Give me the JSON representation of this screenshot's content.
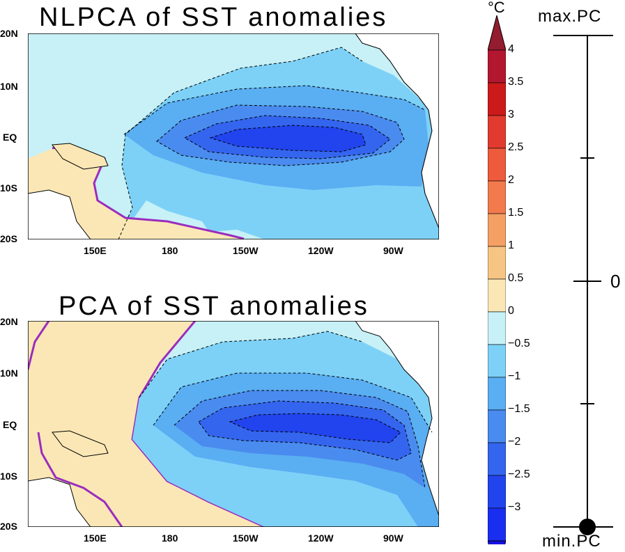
{
  "panels": [
    {
      "title": "NLPCA of SST anomalies"
    },
    {
      "title": "PCA of SST anomalies"
    }
  ],
  "lat_labels": [
    "20N",
    "10N",
    "EQ",
    "10S",
    "20S"
  ],
  "lon_labels": [
    "150E",
    "180",
    "150W",
    "120W",
    "90W"
  ],
  "colorbar": {
    "unit": "°C",
    "levels": [
      "4",
      "3.5",
      "3",
      "2.5",
      "2",
      "1.5",
      "1",
      "0.5",
      "0",
      "−0.5",
      "−1",
      "−1.5",
      "−2",
      "−2.5",
      "−3"
    ],
    "colors": [
      "#b3172f",
      "#cc1a1a",
      "#e03b2e",
      "#ee5a3c",
      "#f27a4c",
      "#f4a064",
      "#f7c583",
      "#fbe7b5",
      "#c7f1f7",
      "#7dd1f7",
      "#5aaef2",
      "#4a8bef",
      "#3465ef",
      "#2144ee",
      "#1a2ef0",
      "#1510e6",
      "#941c2f"
    ]
  },
  "pc_scale": {
    "max_label": "max.PC",
    "zero_label": "0",
    "min_label": "min.PC"
  }
}
